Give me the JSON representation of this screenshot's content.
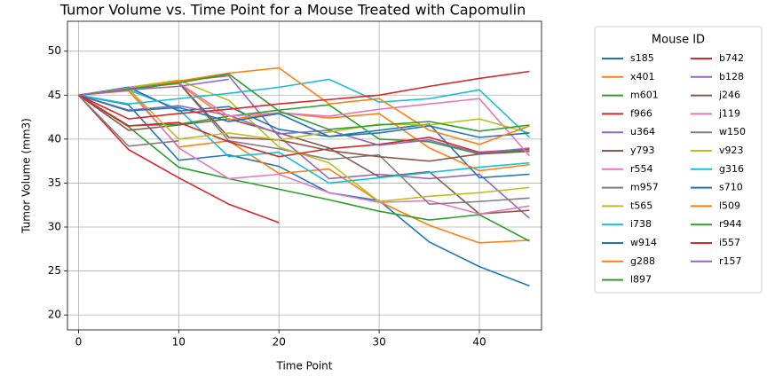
{
  "chart_data": {
    "type": "line",
    "title": "Tumor Volume vs. Time Point for a Mouse Treated with Capomulin",
    "x_label": "Time Point",
    "y_label": "Tumor Volume (mm3)",
    "legend_title": "Mouse ID",
    "legend": "outside right",
    "grid": true,
    "x": [
      0,
      5,
      10,
      15,
      20,
      25,
      30,
      35,
      40,
      45
    ],
    "xlim": [
      -1.1,
      46.2
    ],
    "xticks": [
      0,
      10,
      20,
      30,
      40
    ],
    "ylim": [
      18.3,
      53.4
    ],
    "yticks": [
      20,
      25,
      30,
      35,
      40,
      45,
      50
    ],
    "series": [
      {
        "name": "s185",
        "color": "#1f77b4",
        "values": [
          45,
          43.9,
          37.6,
          38.2,
          36.9,
          33.9,
          33.0,
          28.3,
          25.5,
          23.3
        ]
      },
      {
        "name": "x401",
        "color": "#ff7f0e",
        "values": [
          45,
          45.5,
          39.1,
          39.8,
          36.1,
          36.6,
          32.9,
          30.2,
          28.2,
          28.5
        ]
      },
      {
        "name": "m601",
        "color": "#2ca02c",
        "values": [
          45,
          41.4,
          36.8,
          35.5,
          34.3,
          33.1,
          31.8,
          30.8,
          31.4,
          28.4
        ]
      },
      {
        "name": "f966",
        "color": "#d62728",
        "values": [
          45,
          38.8,
          35.6,
          32.6,
          30.5,
          null,
          null,
          null,
          null,
          null
        ]
      },
      {
        "name": "u364",
        "color": "#9467bd",
        "values": [
          45,
          45.8,
          46.6,
          47.2,
          40.3,
          35.5,
          36.0,
          35.5,
          36.0,
          31.0
        ]
      },
      {
        "name": "y793",
        "color": "#8c564b",
        "values": [
          45,
          41.0,
          41.6,
          42.3,
          40.7,
          39.0,
          35.7,
          36.3,
          31.5,
          31.9
        ]
      },
      {
        "name": "r554",
        "color": "#e377c2",
        "values": [
          45,
          45.8,
          39.0,
          35.5,
          36.0,
          33.9,
          32.8,
          33.0,
          31.5,
          32.4
        ]
      },
      {
        "name": "m957",
        "color": "#7f7f7f",
        "values": [
          45,
          45.6,
          46.4,
          39.8,
          38.9,
          37.7,
          38.2,
          32.6,
          32.9,
          33.3
        ]
      },
      {
        "name": "t565",
        "color": "#bcbd22",
        "values": [
          45,
          45.9,
          46.7,
          44.4,
          39.1,
          37.3,
          32.9,
          33.5,
          33.9,
          34.5
        ]
      },
      {
        "name": "i738",
        "color": "#17becf",
        "values": [
          45,
          45.6,
          43.4,
          38.0,
          38.5,
          35.0,
          35.6,
          36.2,
          36.8,
          37.3
        ]
      },
      {
        "name": "w914",
        "color": "#1f77b4",
        "values": [
          45,
          45.9,
          43.2,
          43.7,
          41.1,
          40.3,
          41.0,
          41.7,
          35.6,
          36.0
        ]
      },
      {
        "name": "g288",
        "color": "#ff7f0e",
        "values": [
          45,
          45.8,
          46.3,
          42.2,
          43.0,
          42.4,
          42.9,
          39.0,
          36.4,
          37.1
        ]
      },
      {
        "name": "l897",
        "color": "#2ca02c",
        "values": [
          45,
          41.5,
          41.7,
          42.6,
          43.3,
          43.9,
          40.0,
          39.7,
          38.3,
          38.8
        ]
      },
      {
        "name": "b742",
        "color": "#d62728",
        "values": [
          45,
          41.5,
          41.9,
          39.7,
          38.0,
          38.9,
          39.4,
          40.2,
          38.5,
          38.9
        ]
      },
      {
        "name": "b128",
        "color": "#9467bd",
        "values": [
          45,
          43.3,
          43.8,
          42.7,
          40.6,
          41.0,
          39.3,
          39.9,
          38.4,
          38.98
        ]
      },
      {
        "name": "j246",
        "color": "#8c564b",
        "values": [
          45,
          45.6,
          46.4,
          40.2,
          39.9,
          38.7,
          38.0,
          37.5,
          38.3,
          38.6
        ]
      },
      {
        "name": "j119",
        "color": "#e377c2",
        "values": [
          45,
          45.8,
          46.4,
          42.6,
          43.0,
          42.6,
          43.4,
          44.0,
          44.6,
          38.1
        ]
      },
      {
        "name": "w150",
        "color": "#7f7f7f",
        "values": [
          45,
          39.2,
          39.8,
          null,
          null,
          null,
          null,
          null,
          null,
          null
        ]
      },
      {
        "name": "v923",
        "color": "#bcbd22",
        "values": [
          45,
          45.7,
          40.0,
          40.7,
          39.9,
          40.8,
          41.7,
          41.6,
          42.3,
          40.7
        ]
      },
      {
        "name": "g316",
        "color": "#17becf",
        "values": [
          45,
          44.0,
          44.6,
          45.2,
          45.9,
          46.8,
          44.2,
          44.6,
          45.6,
          40.2
        ]
      },
      {
        "name": "s710",
        "color": "#1f77b4",
        "values": [
          45,
          43.2,
          43.6,
          42.0,
          42.9,
          40.3,
          40.7,
          41.5,
          40.2,
          40.7
        ]
      },
      {
        "name": "l509",
        "color": "#ff7f0e",
        "values": [
          45,
          45.6,
          46.6,
          47.5,
          48.1,
          44.0,
          44.6,
          41.0,
          39.4,
          41.5
        ]
      },
      {
        "name": "r944",
        "color": "#2ca02c",
        "values": [
          45,
          45.7,
          46.4,
          47.4,
          43.2,
          41.1,
          41.6,
          42.0,
          40.9,
          41.6
        ]
      },
      {
        "name": "i557",
        "color": "#d62728",
        "values": [
          45,
          42.3,
          42.9,
          43.4,
          44.0,
          44.5,
          45.0,
          46.0,
          46.9,
          47.7
        ]
      },
      {
        "name": "r157",
        "color": "#9467bd",
        "values": [
          45,
          45.6,
          46.0,
          46.8,
          null,
          null,
          null,
          null,
          null,
          null
        ]
      }
    ]
  }
}
